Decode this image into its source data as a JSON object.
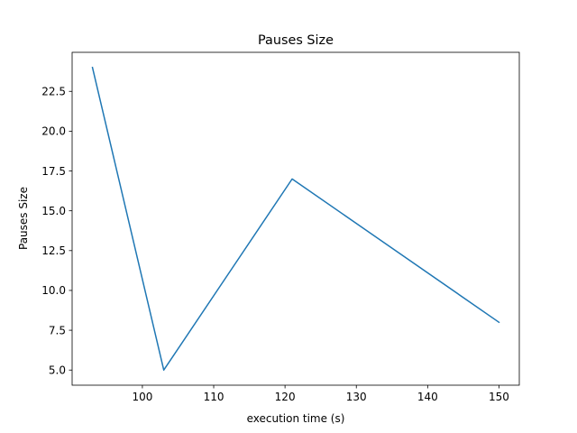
{
  "chart_data": {
    "type": "line",
    "title": "Pauses Size",
    "xlabel": "execution time (s)",
    "ylabel": "Pauses Size",
    "x": [
      93,
      103,
      121,
      150
    ],
    "series": [
      {
        "values": [
          24,
          5,
          17,
          8
        ],
        "color": "#1f77b4"
      }
    ],
    "xlim": [
      90.15,
      152.85
    ],
    "ylim": [
      4.05,
      24.95
    ],
    "xticks": [
      100,
      110,
      120,
      130,
      140,
      150
    ],
    "xtick_labels": [
      "100",
      "110",
      "120",
      "130",
      "140",
      "150"
    ],
    "yticks": [
      5.0,
      7.5,
      10.0,
      12.5,
      15.0,
      17.5,
      20.0,
      22.5
    ],
    "ytick_labels": [
      "5.0",
      "7.5",
      "10.0",
      "12.5",
      "15.0",
      "17.5",
      "20.0",
      "22.5"
    ],
    "grid": false,
    "legend": "none"
  }
}
